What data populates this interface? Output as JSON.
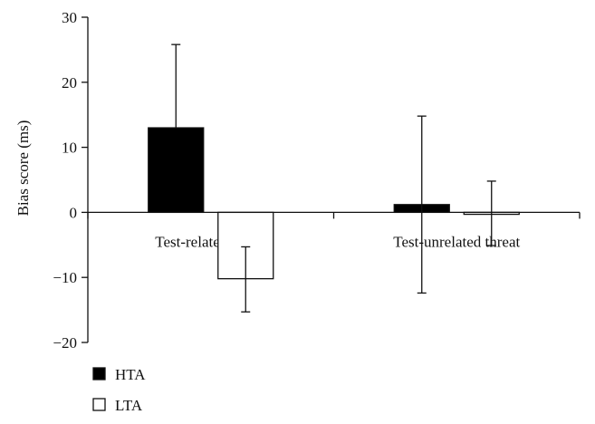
{
  "chart_data": {
    "type": "bar",
    "categories": [
      "Test-related threat",
      "Test-unrelated threat"
    ],
    "series": [
      {
        "name": "HTA",
        "values": [
          13.0,
          1.2
        ],
        "error_high": [
          25.8,
          14.8
        ],
        "error_low": [
          null,
          -12.4
        ]
      },
      {
        "name": "LTA",
        "values": [
          -10.2,
          -0.3
        ],
        "error_high": [
          -5.3,
          4.8
        ],
        "error_low": [
          -15.3,
          -5.1
        ]
      }
    ],
    "title": "",
    "xlabel": "",
    "ylabel": "Bias score (ms)",
    "ylim": [
      -20,
      30
    ],
    "yticks": [
      30,
      20,
      10,
      0,
      -10,
      -20
    ],
    "grid": false,
    "legend_position": "bottom-left",
    "colors": {
      "HTA": "#000000",
      "LTA": "#ffffff",
      "axis": "#111111"
    }
  }
}
